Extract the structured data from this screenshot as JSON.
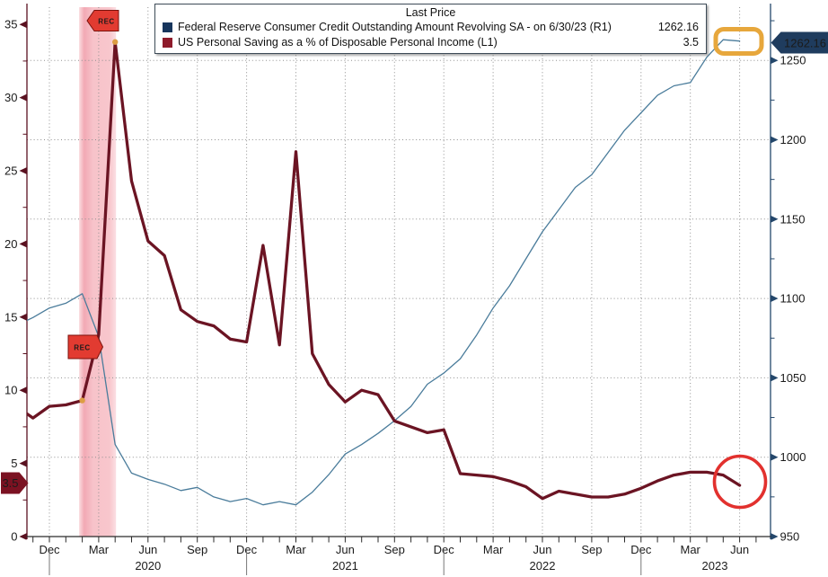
{
  "legend": {
    "title": "Last Price",
    "series": [
      {
        "label": "Federal Reserve Consumer Credit Outstanding Amount Revolving SA -  on 6/30/23  (R1)",
        "value": "1262.16",
        "swatch_color": "#17365d"
      },
      {
        "label": "US Personal Saving as a % of Disposable Personal Income  (L1)",
        "value": "3.5",
        "swatch_color": "#8e1b2b"
      }
    ]
  },
  "badges": {
    "left_value": "3.5",
    "left_color": "#7b1222",
    "right_value": "1262.16",
    "right_color": "#1f3c5e"
  },
  "rec_flags": {
    "label": "REC",
    "fill": "#e23b31",
    "border": "#7a120c",
    "text_color": "#57090d"
  },
  "axes": {
    "left_tick_labels": [
      "0",
      "5",
      "10",
      "15",
      "20",
      "25",
      "30",
      "35"
    ],
    "right_tick_labels": [
      "950",
      "1000",
      "1050",
      "1100",
      "1150",
      "1200",
      "1250"
    ],
    "quarter_labels": [
      "Dec",
      "Mar",
      "Jun",
      "Sep",
      "Dec",
      "Mar",
      "Jun",
      "Sep",
      "Dec",
      "Mar",
      "Jun",
      "Sep",
      "Dec",
      "Mar",
      "Jun"
    ],
    "year_labels": [
      "2020",
      "2021",
      "2022",
      "2023"
    ]
  },
  "chart_data": {
    "type": "line",
    "months": [
      "2019-10",
      "2019-11",
      "2019-12",
      "2020-01",
      "2020-02",
      "2020-03",
      "2020-04",
      "2020-05",
      "2020-06",
      "2020-07",
      "2020-08",
      "2020-09",
      "2020-10",
      "2020-11",
      "2020-12",
      "2021-01",
      "2021-02",
      "2021-03",
      "2021-04",
      "2021-05",
      "2021-06",
      "2021-07",
      "2021-08",
      "2021-09",
      "2021-10",
      "2021-11",
      "2021-12",
      "2022-01",
      "2022-02",
      "2022-03",
      "2022-04",
      "2022-05",
      "2022-06",
      "2022-07",
      "2022-08",
      "2022-09",
      "2022-10",
      "2022-11",
      "2022-12",
      "2023-01",
      "2023-02",
      "2023-03",
      "2023-04",
      "2023-05",
      "2023-06"
    ],
    "series": [
      {
        "name": "Federal Reserve Consumer Credit Outstanding Amount Revolving SA",
        "axis": "R1",
        "color": "#4a7c9b",
        "line_width": 1.3,
        "last_value": 1262.16,
        "values": [
          1083,
          1088,
          1094,
          1097,
          1103,
          1076,
          1008,
          990,
          986,
          983,
          979,
          981,
          975,
          972,
          974,
          970,
          972,
          970,
          978,
          989,
          1002,
          1008,
          1015,
          1023,
          1032,
          1046,
          1053,
          1062,
          1077,
          1094,
          1108,
          1125,
          1142,
          1156,
          1170,
          1178,
          1192,
          1206,
          1217,
          1228,
          1234,
          1236,
          1252,
          1263,
          1262.16
        ]
      },
      {
        "name": "US Personal Saving as a % of Disposable Personal Income",
        "axis": "L1",
        "color": "#6b1423",
        "line_width": 3.3,
        "last_value": 3.5,
        "values": [
          8.9,
          8.1,
          8.9,
          9.0,
          9.3,
          13.8,
          33.8,
          24.3,
          20.2,
          19.2,
          15.5,
          14.7,
          14.4,
          13.5,
          13.3,
          19.9,
          13.1,
          26.3,
          12.5,
          10.4,
          9.2,
          10.0,
          9.7,
          7.9,
          7.5,
          7.1,
          7.3,
          4.3,
          4.2,
          4.1,
          3.8,
          3.4,
          2.6,
          3.1,
          2.9,
          2.7,
          2.7,
          2.9,
          3.3,
          3.8,
          4.2,
          4.4,
          4.4,
          4.2,
          3.5
        ]
      }
    ],
    "left_axis": {
      "range": [
        0,
        36.6
      ],
      "ticks": [
        0,
        5,
        10,
        15,
        20,
        25,
        30,
        35
      ],
      "minor_ticks": [
        2.5,
        7.5,
        12.5,
        17.5,
        22.5,
        27.5,
        32.5
      ],
      "color": "#5a1120"
    },
    "right_axis": {
      "range": [
        945,
        1286
      ],
      "ticks": [
        950,
        1000,
        1050,
        1100,
        1150,
        1200,
        1250
      ],
      "minor_ticks": [
        975,
        1025,
        1075,
        1125,
        1175,
        1225,
        1275
      ],
      "color": "#24476b"
    },
    "grid": true,
    "legend_position": "top-center",
    "recession_band_months": [
      "2020-02",
      "2020-04"
    ],
    "event_dots": [
      {
        "month": "2020-02",
        "value": 9.3
      },
      {
        "month": "2020-04",
        "value": 33.8
      }
    ]
  },
  "annotations": {
    "highlight_box_color": "#e7a73c",
    "highlight_circle_color": "#e2312e"
  }
}
